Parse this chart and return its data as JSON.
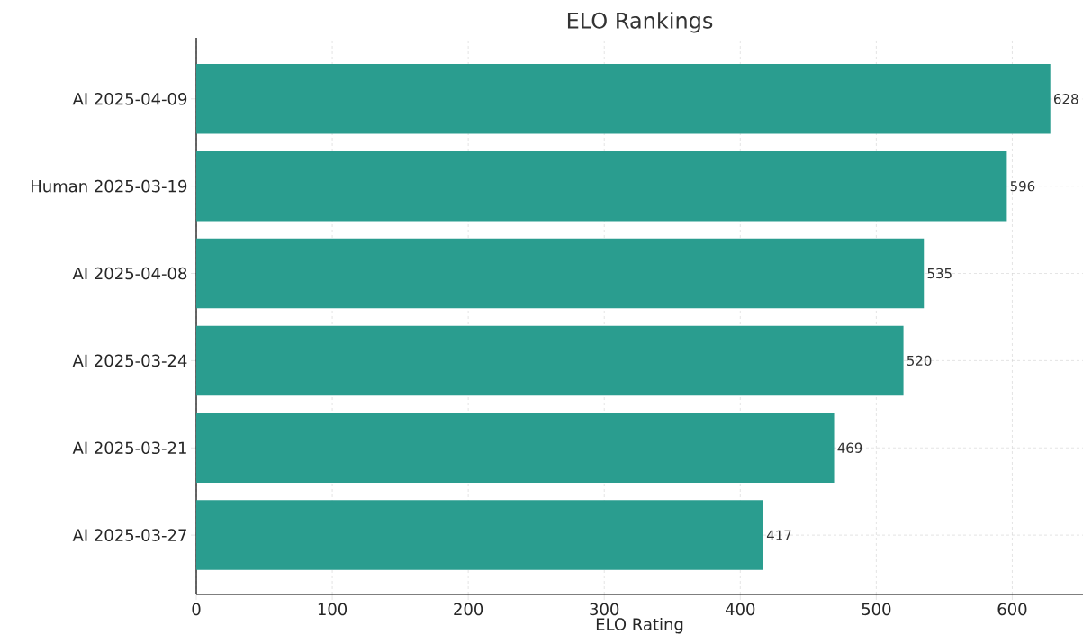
{
  "chart_data": {
    "type": "bar",
    "orientation": "horizontal",
    "title": "ELO Rankings",
    "xlabel": "ELO Rating",
    "categories": [
      "AI 2025-04-09",
      "Human 2025-03-19",
      "AI 2025-04-08",
      "AI 2025-03-24",
      "AI 2025-03-21",
      "AI 2025-03-27"
    ],
    "values": [
      628,
      596,
      535,
      520,
      469,
      417
    ],
    "color": "#2a9d8f",
    "xlim": [
      0,
      652
    ],
    "xticks": [
      0,
      100,
      200,
      300,
      400,
      500,
      600
    ],
    "grid": true,
    "data_labels": true
  }
}
